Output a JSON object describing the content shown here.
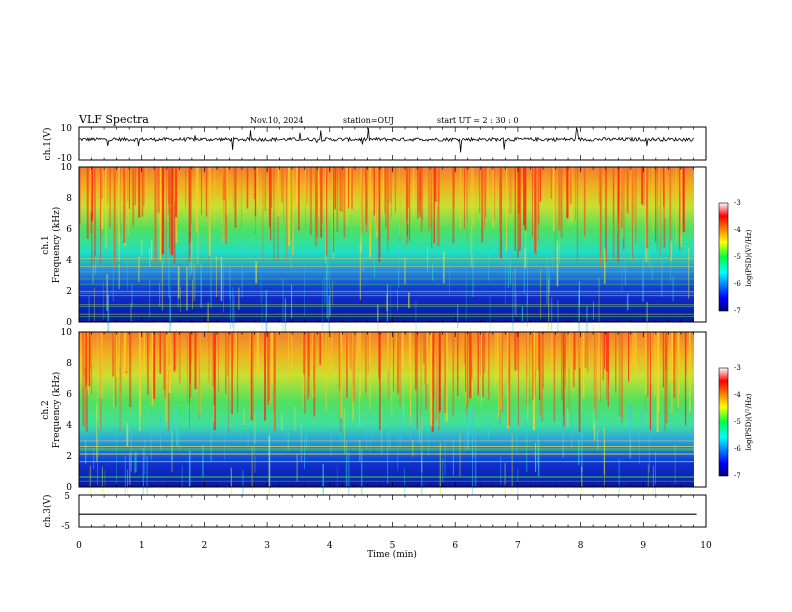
{
  "header": {
    "title": "VLF Spectra",
    "date": "Nov.10, 2024",
    "station": "station=OUJ",
    "start": "start UT =  2 : 30 : 0"
  },
  "chart_data": [
    {
      "type": "line",
      "id": "ch1",
      "ylabel": "ch.1(V)",
      "ylim": [
        -10,
        10
      ],
      "y_ticks": [
        "10",
        "-10"
      ],
      "xlim": [
        0,
        10
      ],
      "baseline": 2.5
    },
    {
      "type": "heatmap",
      "id": "spec1",
      "ylabel_line1": "ch.1",
      "ylabel_line2": "Frequency (kHz)",
      "ylim": [
        0,
        10
      ],
      "y_ticks": [
        "0",
        "2",
        "4",
        "6",
        "8",
        "10"
      ],
      "colorbar": {
        "label": "log(PSD)(V²/Hz)",
        "range": [
          -7,
          -3
        ],
        "ticks": [
          "-3",
          "-4",
          "-5",
          "-6",
          "-7"
        ]
      }
    },
    {
      "type": "heatmap",
      "id": "spec2",
      "ylabel_line1": "ch.2",
      "ylabel_line2": "Frequency (kHz)",
      "ylim": [
        0,
        10
      ],
      "y_ticks": [
        "0",
        "2",
        "4",
        "6",
        "8",
        "10"
      ],
      "colorbar": {
        "label": "log(PSD)(V²/Hz)",
        "range": [
          -7,
          -3
        ],
        "ticks": [
          "-3",
          "-4",
          "-5",
          "-6",
          "-7"
        ]
      }
    },
    {
      "type": "line",
      "id": "ch3",
      "ylabel": "ch.3(V)",
      "ylim": [
        -5,
        5
      ],
      "y_ticks": [
        "5",
        "-5"
      ],
      "baseline": -1.0
    }
  ],
  "x_axis": {
    "label": "Time (min)",
    "range": [
      0,
      10
    ],
    "ticks": [
      "0",
      "1",
      "2",
      "3",
      "4",
      "5",
      "6",
      "7",
      "8",
      "9",
      "10"
    ]
  }
}
